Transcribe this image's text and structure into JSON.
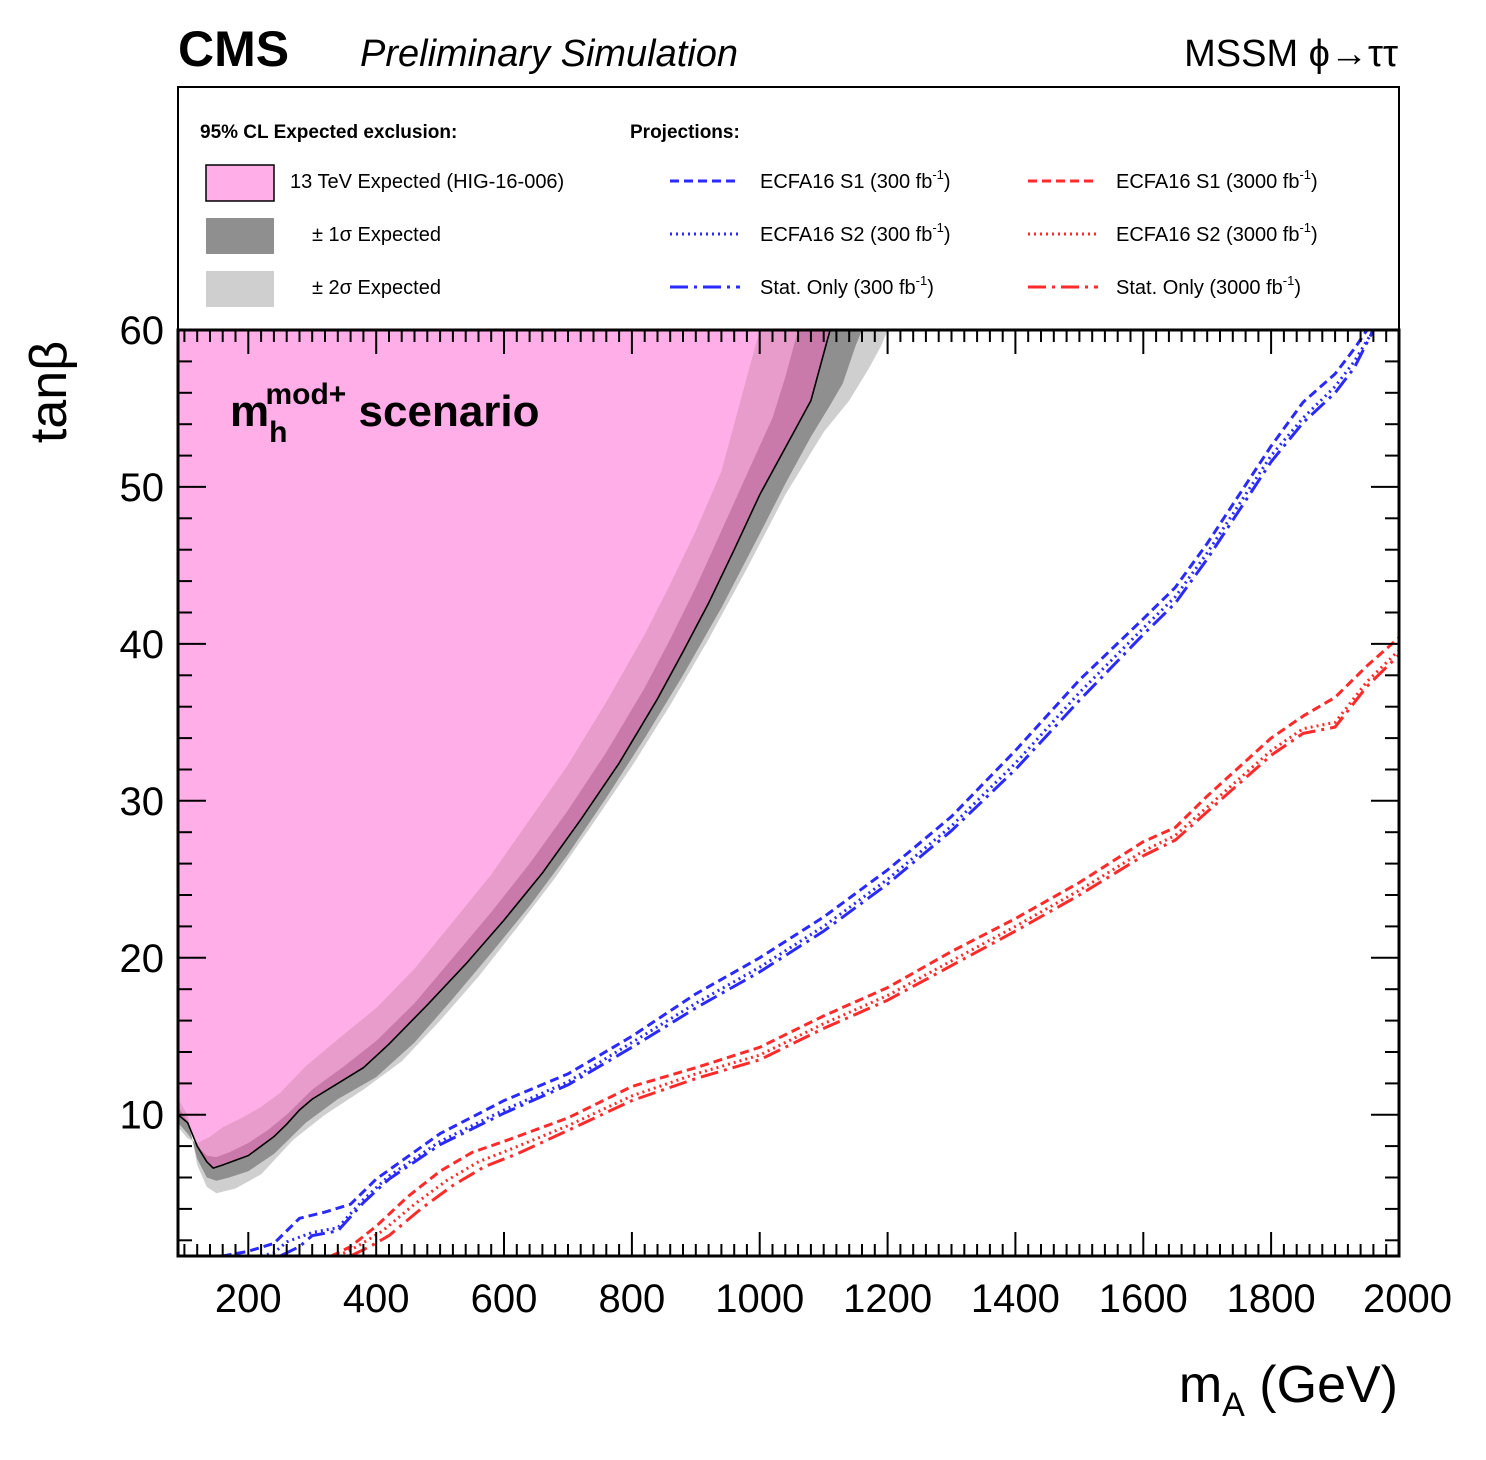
{
  "header": {
    "experiment": "CMS",
    "status": "Preliminary Simulation",
    "process": "MSSM ϕ→ττ"
  },
  "scenario_label": {
    "main": "m",
    "sub": "h",
    "sup": "mod+",
    "rest": " scenario"
  },
  "legend": {
    "header_left": "95% CL Expected exclusion:",
    "header_right": "Projections:",
    "entries": [
      {
        "label": "13 TeV Expected (HIG-16-006)",
        "style": "box",
        "color": "#ffaee8"
      },
      {
        "label": "± 1σ Expected",
        "style": "box",
        "color": "#8f8f8f"
      },
      {
        "label": "± 2σ Expected",
        "style": "box",
        "color": "#cfcfcf"
      },
      {
        "label": "ECFA16 S1 (300 fb",
        "unit_sup": "-1",
        "close": ")",
        "style": "short-dash",
        "color": "#2a2aff"
      },
      {
        "label": "ECFA16 S2 (300 fb",
        "unit_sup": "-1",
        "close": ")",
        "style": "dotted",
        "color": "#2a2aff"
      },
      {
        "label": "Stat. Only (300 fb",
        "unit_sup": "-1",
        "close": ")",
        "style": "long-dash",
        "color": "#2a2aff"
      },
      {
        "label": "ECFA16 S1 (3000 fb",
        "unit_sup": "-1",
        "close": ")",
        "style": "short-dash",
        "color": "#ff2a2a"
      },
      {
        "label": "ECFA16 S2 (3000 fb",
        "unit_sup": "-1",
        "close": ")",
        "style": "dotted",
        "color": "#ff2a2a"
      },
      {
        "label": "Stat. Only (3000 fb",
        "unit_sup": "-1",
        "close": ")",
        "style": "long-dash",
        "color": "#ff2a2a"
      }
    ]
  },
  "chart_data": {
    "type": "area",
    "xlabel": "m",
    "xlabel_sub": "A",
    "xlabel_unit": " (GeV)",
    "ylabel": "tanβ",
    "xlim": [
      90,
      2000
    ],
    "ylim": [
      1,
      60
    ],
    "x_ticks": [
      200,
      400,
      600,
      800,
      1000,
      1200,
      1400,
      1600,
      1800,
      2000
    ],
    "y_ticks": [
      10,
      20,
      30,
      40,
      50,
      60
    ],
    "grid": false,
    "legend_position": "top, above plot frame",
    "colors": {
      "expected_fill": "#ffaee8",
      "band_1sigma": "#8f8f8f",
      "band_2sigma": "#cfcfcf",
      "band_1sigma_in_fill": "#c97aaa",
      "band_2sigma_in_fill": "#e79ccb",
      "blue": "#2a2aff",
      "red": "#ff2a2a"
    },
    "expected_exclusion": {
      "x": [
        90,
        105,
        120,
        135,
        145,
        160,
        180,
        200,
        220,
        240,
        260,
        280,
        300,
        340,
        380,
        420,
        480,
        540,
        600,
        660,
        720,
        780,
        840,
        880,
        920,
        960,
        1000,
        1040,
        1060,
        1080,
        1090,
        1100,
        1110
      ],
      "y": [
        10,
        9.5,
        8,
        7,
        6.6,
        6.8,
        7.1,
        7.4,
        8,
        8.6,
        9.4,
        10.3,
        11,
        12,
        13,
        14.5,
        17,
        19.6,
        22.4,
        25.4,
        28.8,
        32.4,
        36.5,
        39.5,
        42.6,
        46,
        49.5,
        52.5,
        54,
        55.5,
        57,
        58.5,
        60
      ]
    },
    "sigma1_band": {
      "lower": {
        "x": [
          90,
          105,
          120,
          135,
          150,
          170,
          200,
          230,
          260,
          300,
          350,
          400,
          460,
          520,
          580,
          640,
          700,
          760,
          820,
          860,
          900,
          940,
          980,
          1000,
          1020,
          1040,
          1060
        ],
        "y": [
          9.5,
          8.8,
          8,
          7.4,
          7.3,
          7.6,
          8.2,
          9,
          10,
          11.6,
          13.1,
          14.7,
          17.1,
          20,
          22.9,
          26,
          29.4,
          33.1,
          37.2,
          40.3,
          43.6,
          47.2,
          50.8,
          52.6,
          54.4,
          57,
          60
        ]
      },
      "upper": {
        "x": [
          90,
          105,
          120,
          135,
          150,
          170,
          200,
          240,
          290,
          340,
          400,
          460,
          520,
          580,
          640,
          700,
          760,
          820,
          880,
          940,
          1000,
          1040,
          1080,
          1110,
          1130,
          1140,
          1150,
          1160
        ],
        "y": [
          10.5,
          9.6,
          7.2,
          6,
          5.8,
          6,
          6.4,
          7.5,
          9.5,
          11,
          12.4,
          14.6,
          17.4,
          20.3,
          23.3,
          26.6,
          30.2,
          34,
          38,
          42.3,
          47,
          50.2,
          53.2,
          55.2,
          56.6,
          57.8,
          59,
          60
        ]
      }
    },
    "sigma2_band": {
      "lower": {
        "x": [
          90,
          105,
          120,
          140,
          160,
          190,
          220,
          250,
          290,
          340,
          400,
          460,
          520,
          580,
          640,
          700,
          760,
          820,
          860,
          900,
          940,
          960,
          980,
          1000
        ],
        "y": [
          9.2,
          8.5,
          8.2,
          8.6,
          9.2,
          9.8,
          10.5,
          11.4,
          13.1,
          14.8,
          16.8,
          19.3,
          22.3,
          25.3,
          28.8,
          32.3,
          36.3,
          40.6,
          43.8,
          47.2,
          51,
          54,
          57,
          60
        ]
      },
      "upper": {
        "x": [
          90,
          105,
          120,
          135,
          150,
          180,
          220,
          270,
          320,
          380,
          440,
          500,
          560,
          620,
          680,
          740,
          800,
          860,
          920,
          980,
          1040,
          1100,
          1140,
          1170,
          1190,
          1200
        ],
        "y": [
          11,
          10,
          6.8,
          5.4,
          5,
          5.3,
          6.2,
          8.4,
          10,
          11.6,
          13.4,
          16,
          18.8,
          21.9,
          25.1,
          28.6,
          32.2,
          36.1,
          40.3,
          44.8,
          49.5,
          53.5,
          55.5,
          57.5,
          59,
          60
        ]
      }
    },
    "series": [
      {
        "name": "ECFA16 S1 (300 fb-1)",
        "color": "#2a2aff",
        "style": "short-dash",
        "x": [
          160,
          200,
          240,
          280,
          320,
          360,
          400,
          500,
          600,
          700,
          800,
          900,
          1000,
          1100,
          1200,
          1300,
          1400,
          1500,
          1600,
          1650,
          1700,
          1800,
          1850,
          1900,
          1930,
          1950
        ],
        "y": [
          1,
          1.3,
          1.8,
          3.4,
          3.8,
          4.3,
          5.9,
          8.8,
          10.9,
          12.6,
          15,
          17.7,
          20,
          22.6,
          25.6,
          29,
          33.2,
          37.7,
          41.6,
          43.6,
          46.4,
          52.6,
          55.4,
          57.2,
          58.8,
          60
        ]
      },
      {
        "name": "ECFA16 S2 (300 fb-1)",
        "color": "#2a2aff",
        "style": "dotted",
        "x": [
          220,
          240,
          260,
          300,
          340,
          380,
          420,
          500,
          600,
          700,
          800,
          900,
          1000,
          1100,
          1200,
          1300,
          1400,
          1500,
          1600,
          1650,
          1700,
          1800,
          1850,
          1900,
          1930,
          1960
        ],
        "y": [
          1,
          1.2,
          1.9,
          2.5,
          2.8,
          4.6,
          6.1,
          8.3,
          10.3,
          12.1,
          14.6,
          17.1,
          19.4,
          22,
          25,
          28.4,
          32.4,
          36.9,
          41,
          43,
          45.8,
          52,
          54.4,
          56.4,
          58,
          60
        ]
      },
      {
        "name": "Stat. Only (300 fb-1)",
        "color": "#2a2aff",
        "style": "long-dash",
        "x": [
          250,
          280,
          300,
          340,
          380,
          420,
          500,
          600,
          700,
          800,
          900,
          1000,
          1100,
          1200,
          1300,
          1400,
          1500,
          1600,
          1650,
          1700,
          1800,
          1850,
          1900,
          1930,
          1960
        ],
        "y": [
          1,
          1.6,
          2.3,
          2.6,
          4.4,
          5.9,
          8.1,
          10.1,
          11.9,
          14.3,
          16.8,
          19.1,
          21.7,
          24.7,
          28.1,
          32,
          36.4,
          40.6,
          42.6,
          45.4,
          51.6,
          54.1,
          56,
          57.6,
          60
        ]
      },
      {
        "name": "ECFA16 S1 (3000 fb-1)",
        "color": "#ff2a2a",
        "style": "short-dash",
        "x": [
          330,
          360,
          400,
          450,
          500,
          550,
          600,
          700,
          800,
          900,
          1000,
          1100,
          1200,
          1300,
          1400,
          1500,
          1600,
          1650,
          1700,
          1800,
          1850,
          1900,
          1950,
          2000
        ],
        "y": [
          1,
          1.6,
          2.9,
          4.8,
          6.4,
          7.6,
          8.3,
          9.8,
          11.8,
          13,
          14.3,
          16.3,
          18.1,
          20.4,
          22.5,
          24.8,
          27.4,
          28.3,
          30.3,
          34,
          35.4,
          36.6,
          38.6,
          40.4
        ]
      },
      {
        "name": "ECFA16 S2 (3000 fb-1)",
        "color": "#ff2a2a",
        "style": "dotted",
        "x": [
          340,
          370,
          410,
          460,
          510,
          560,
          610,
          700,
          800,
          900,
          1000,
          1100,
          1200,
          1300,
          1400,
          1500,
          1600,
          1650,
          1700,
          1800,
          1850,
          1900,
          1950,
          2000
        ],
        "y": [
          1,
          1.6,
          2.6,
          4.3,
          5.8,
          7,
          7.8,
          9.3,
          11.2,
          12.6,
          13.8,
          15.8,
          17.6,
          19.8,
          22,
          24.3,
          26.8,
          27.8,
          29.6,
          33.2,
          34.6,
          35,
          37.6,
          39.6
        ]
      },
      {
        "name": "Stat. Only (3000 fb-1)",
        "color": "#ff2a2a",
        "style": "long-dash",
        "x": [
          360,
          390,
          420,
          470,
          520,
          570,
          620,
          700,
          800,
          900,
          1000,
          1100,
          1200,
          1300,
          1400,
          1500,
          1600,
          1650,
          1700,
          1800,
          1850,
          1900,
          1950,
          2000
        ],
        "y": [
          1,
          1.6,
          2.3,
          4,
          5.5,
          6.7,
          7.5,
          9,
          10.9,
          12.3,
          13.5,
          15.5,
          17.3,
          19.5,
          21.7,
          24,
          26.5,
          27.5,
          29.3,
          32.9,
          34.3,
          34.7,
          37.3,
          39.3
        ]
      }
    ]
  }
}
